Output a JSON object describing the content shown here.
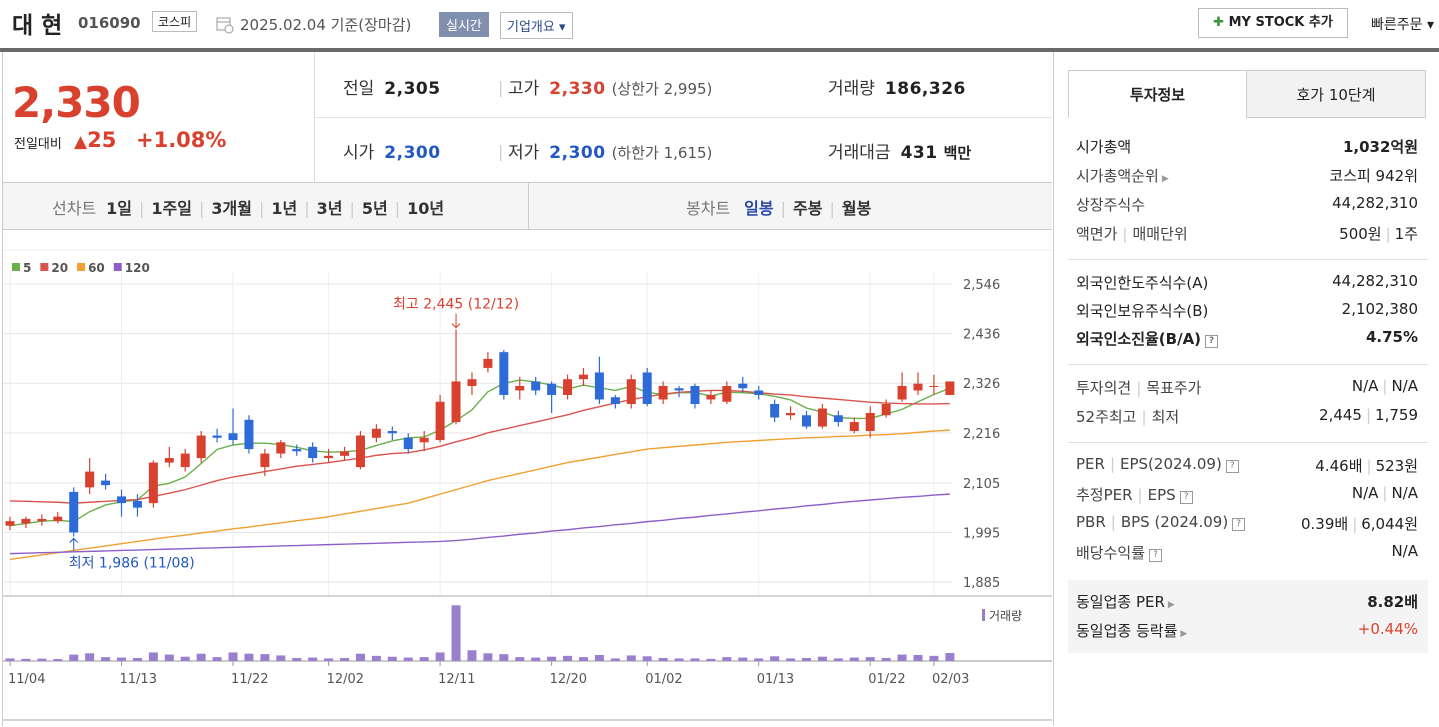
{
  "header": {
    "name": "대 현",
    "code": "016090",
    "market": "코스피",
    "date": "2025.02.04",
    "basis": "기준(장마감)",
    "realtime": "실시간",
    "company": "기업개요",
    "mystock": "MY STOCK 추가",
    "quick": "빠른주문"
  },
  "quote": {
    "price": "2,330",
    "change_label": "전일대비",
    "change": "25",
    "change_pct": "+1.08%",
    "rows": [
      [
        {
          "label": "전일",
          "value": "2,305",
          "color": "#222222"
        },
        {
          "label": "고가",
          "value": "2,330",
          "sub": "(상한가 2,995)",
          "color": "#d9412f"
        },
        {
          "label": "거래량",
          "value": "186,326",
          "color": "#222222"
        }
      ],
      [
        {
          "label": "시가",
          "value": "2,300",
          "color": "#2358c4"
        },
        {
          "label": "저가",
          "value": "2,300",
          "sub": "(하한가 1,615)",
          "color": "#2358c4"
        },
        {
          "label": "거래대금",
          "value": "431",
          "sub": "백만",
          "color": "#222222"
        }
      ]
    ]
  },
  "periods": {
    "line_label": "선차트",
    "line": [
      "1일",
      "1주일",
      "3개월",
      "1년",
      "3년",
      "5년",
      "10년"
    ],
    "candle_label": "봉차트",
    "candle": [
      "일봉",
      "주봉",
      "월봉"
    ]
  },
  "chart_data": {
    "type": "candlestick",
    "up_color": "#d9412f",
    "down_color": "#2f6bd6",
    "volume_color": "#9b7fcf",
    "categories": [
      "11/04",
      null,
      null,
      null,
      null,
      null,
      null,
      "11/13",
      null,
      null,
      null,
      null,
      null,
      null,
      "11/22",
      null,
      null,
      null,
      null,
      null,
      "12/02",
      null,
      null,
      null,
      null,
      null,
      null,
      "12/11",
      null,
      null,
      null,
      null,
      null,
      null,
      "12/20",
      null,
      null,
      null,
      null,
      null,
      "01/02",
      null,
      null,
      null,
      null,
      null,
      null,
      "01/13",
      null,
      null,
      null,
      null,
      null,
      null,
      "01/22",
      null,
      null,
      null,
      "02/03",
      null
    ],
    "ohlc": [
      [
        2010,
        2030,
        2000,
        2020
      ],
      [
        2015,
        2030,
        2005,
        2025
      ],
      [
        2020,
        2035,
        2010,
        2025
      ],
      [
        2020,
        2040,
        2015,
        2030
      ],
      [
        2085,
        2095,
        1986,
        1995
      ],
      [
        2095,
        2160,
        2080,
        2130
      ],
      [
        2110,
        2125,
        2090,
        2100
      ],
      [
        2075,
        2090,
        2030,
        2060
      ],
      [
        2065,
        2080,
        2030,
        2050
      ],
      [
        2060,
        2155,
        2050,
        2150
      ],
      [
        2150,
        2185,
        2140,
        2160
      ],
      [
        2140,
        2180,
        2130,
        2170
      ],
      [
        2160,
        2220,
        2150,
        2210
      ],
      [
        2210,
        2225,
        2195,
        2205
      ],
      [
        2215,
        2270,
        2190,
        2200
      ],
      [
        2245,
        2255,
        2170,
        2180
      ],
      [
        2140,
        2180,
        2120,
        2170
      ],
      [
        2170,
        2200,
        2160,
        2195
      ],
      [
        2180,
        2190,
        2165,
        2175
      ],
      [
        2185,
        2195,
        2150,
        2160
      ],
      [
        2160,
        2180,
        2150,
        2165
      ],
      [
        2165,
        2185,
        2155,
        2175
      ],
      [
        2140,
        2220,
        2135,
        2210
      ],
      [
        2205,
        2235,
        2195,
        2225
      ],
      [
        2220,
        2230,
        2200,
        2215
      ],
      [
        2205,
        2215,
        2170,
        2180
      ],
      [
        2195,
        2220,
        2175,
        2205
      ],
      [
        2200,
        2300,
        2195,
        2285
      ],
      [
        2240,
        2445,
        2235,
        2330
      ],
      [
        2320,
        2350,
        2300,
        2335
      ],
      [
        2360,
        2395,
        2350,
        2380
      ],
      [
        2395,
        2400,
        2290,
        2300
      ],
      [
        2310,
        2340,
        2290,
        2320
      ],
      [
        2330,
        2340,
        2300,
        2310
      ],
      [
        2325,
        2330,
        2260,
        2300
      ],
      [
        2300,
        2345,
        2290,
        2335
      ],
      [
        2335,
        2360,
        2320,
        2345
      ],
      [
        2350,
        2385,
        2280,
        2290
      ],
      [
        2295,
        2300,
        2270,
        2280
      ],
      [
        2280,
        2345,
        2270,
        2335
      ],
      [
        2350,
        2360,
        2275,
        2280
      ],
      [
        2290,
        2330,
        2280,
        2320
      ],
      [
        2315,
        2320,
        2295,
        2310
      ],
      [
        2320,
        2325,
        2270,
        2280
      ],
      [
        2290,
        2310,
        2280,
        2300
      ],
      [
        2285,
        2330,
        2280,
        2320
      ],
      [
        2325,
        2340,
        2305,
        2315
      ],
      [
        2310,
        2320,
        2290,
        2300
      ],
      [
        2280,
        2290,
        2240,
        2250
      ],
      [
        2255,
        2275,
        2245,
        2260
      ],
      [
        2255,
        2265,
        2225,
        2230
      ],
      [
        2230,
        2280,
        2225,
        2270
      ],
      [
        2255,
        2265,
        2230,
        2240
      ],
      [
        2220,
        2250,
        2215,
        2240
      ],
      [
        2220,
        2275,
        2205,
        2260
      ],
      [
        2255,
        2290,
        2250,
        2280
      ],
      [
        2290,
        2350,
        2285,
        2320
      ],
      [
        2310,
        2350,
        2300,
        2325
      ],
      [
        2320,
        2345,
        2300,
        2320
      ],
      [
        2300,
        2330,
        2300,
        2330
      ]
    ],
    "series": [
      {
        "name": "5",
        "color": "#6ab04c",
        "values": [
          2010,
          2015,
          2020,
          2022,
          2019,
          2041,
          2056,
          2063,
          2067,
          2098,
          2104,
          2118,
          2148,
          2179,
          2189,
          2193,
          2193,
          2190,
          2184,
          2176,
          2173,
          2174,
          2177,
          2188,
          2198,
          2205,
          2207,
          2222,
          2243,
          2267,
          2307,
          2326,
          2333,
          2329,
          2322,
          2313,
          2322,
          2316,
          2310,
          2319,
          2306,
          2301,
          2305,
          2305,
          2298,
          2306,
          2305,
          2303,
          2297,
          2289,
          2271,
          2262,
          2250,
          2248,
          2248,
          2258,
          2268,
          2285,
          2301,
          2315
        ]
      },
      {
        "name": "20",
        "color": "#d9534f",
        "values": [
          2065,
          2064,
          2063,
          2062,
          2060,
          2062,
          2064,
          2066,
          2068,
          2075,
          2082,
          2090,
          2100,
          2110,
          2118,
          2124,
          2130,
          2136,
          2142,
          2146,
          2150,
          2155,
          2160,
          2166,
          2170,
          2172,
          2178,
          2186,
          2196,
          2205,
          2216,
          2224,
          2232,
          2240,
          2248,
          2256,
          2266,
          2274,
          2282,
          2290,
          2296,
          2302,
          2306,
          2308,
          2310,
          2310,
          2308,
          2305,
          2302,
          2300,
          2296,
          2293,
          2290,
          2287,
          2284,
          2282,
          2281,
          2280,
          2280,
          2281
        ]
      },
      {
        "name": "60",
        "color": "#f0a030",
        "values": [
          1935,
          1940,
          1945,
          1950,
          1955,
          1960,
          1965,
          1970,
          1975,
          1980,
          1985,
          1989,
          1994,
          1998,
          2003,
          2007,
          2012,
          2016,
          2021,
          2025,
          2030,
          2036,
          2042,
          2048,
          2054,
          2060,
          2070,
          2080,
          2090,
          2100,
          2110,
          2118,
          2126,
          2134,
          2142,
          2150,
          2156,
          2162,
          2168,
          2174,
          2180,
          2183,
          2186,
          2189,
          2192,
          2195,
          2197,
          2199,
          2201,
          2203,
          2205,
          2206,
          2208,
          2209,
          2211,
          2212,
          2214,
          2217,
          2220,
          2222
        ]
      },
      {
        "name": "120",
        "color": "#8e5fc9",
        "values": [
          1948,
          1949,
          1950,
          1951,
          1952,
          1953,
          1954,
          1955,
          1956,
          1957,
          1958,
          1959,
          1960,
          1961,
          1962,
          1963,
          1964,
          1965,
          1966,
          1967,
          1968,
          1969,
          1970,
          1971,
          1972,
          1973,
          1974,
          1975,
          1977,
          1980,
          1984,
          1987,
          1991,
          1994,
          1998,
          2001,
          2005,
          2008,
          2012,
          2015,
          2019,
          2022,
          2026,
          2029,
          2033,
          2036,
          2040,
          2043,
          2047,
          2050,
          2054,
          2057,
          2061,
          2064,
          2067,
          2070,
          2073,
          2075,
          2078,
          2080
        ]
      }
    ],
    "volume_name": "거래량",
    "volumes": [
      60000,
      50000,
      55000,
      45000,
      150000,
      180000,
      90000,
      80000,
      70000,
      200000,
      150000,
      100000,
      170000,
      90000,
      200000,
      170000,
      160000,
      130000,
      70000,
      80000,
      60000,
      70000,
      170000,
      120000,
      100000,
      80000,
      90000,
      200000,
      1300000,
      250000,
      180000,
      160000,
      90000,
      80000,
      100000,
      120000,
      90000,
      140000,
      60000,
      130000,
      110000,
      70000,
      60000,
      60000,
      50000,
      90000,
      80000,
      60000,
      110000,
      60000,
      70000,
      100000,
      60000,
      80000,
      90000,
      70000,
      150000,
      140000,
      120000,
      186326
    ],
    "volume_lim": [
      0,
      1400000
    ],
    "ylim": [
      1854,
      2595
    ],
    "yticks": [
      {
        "value": 1885,
        "label": "1,885"
      },
      {
        "value": 1995,
        "label": "1,995"
      },
      {
        "value": 2105,
        "label": "2,105"
      },
      {
        "value": 2216,
        "label": "2,216"
      },
      {
        "value": 2326,
        "label": "2,326"
      },
      {
        "value": 2436,
        "label": "2,436"
      },
      {
        "value": 2546,
        "label": "2,546"
      }
    ],
    "grid": true,
    "annotations": [
      {
        "text": "최고 2,445 (12/12)",
        "color": "#d9412f"
      },
      {
        "text": "최저 1,986 (11/08)",
        "color": "#2358c4"
      }
    ]
  },
  "tabs": [
    "투자정보",
    "호가 10단계"
  ],
  "info": [
    [
      {
        "label": [
          "시가총액"
        ],
        "value": [
          "1,032억원"
        ]
      },
      {
        "label": [
          "시가총액순위"
        ],
        "value": [
          "코스피 942위"
        ]
      },
      {
        "label": [
          "상장주식수"
        ],
        "value": [
          "44,282,310"
        ]
      },
      {
        "label": [
          "액면가",
          "매매단위"
        ],
        "value": [
          "500원",
          "1주"
        ]
      }
    ],
    [
      {
        "label": [
          "외국인한도주식수(A)"
        ],
        "value": [
          "44,282,310"
        ]
      },
      {
        "label": [
          "외국인보유주식수(B)"
        ],
        "value": [
          "2,102,380"
        ]
      },
      {
        "label": [
          "외국인소진율(B/A)"
        ],
        "value": [
          "4.75%"
        ]
      }
    ],
    [
      {
        "label": [
          "투자의견",
          "목표주가"
        ],
        "value": [
          "N/A",
          "N/A"
        ]
      },
      {
        "label": [
          "52주최고",
          "최저"
        ],
        "value": [
          "2,445",
          "1,759"
        ]
      }
    ],
    [
      {
        "label": [
          "PER",
          "EPS(2024.09)"
        ],
        "value": [
          "4.46배",
          "523원"
        ]
      },
      {
        "label": [
          "추정PER",
          "EPS"
        ],
        "value": [
          "N/A",
          "N/A"
        ]
      },
      {
        "label": [
          "PBR",
          "BPS (2024.09)"
        ],
        "value": [
          "0.39배",
          "6,044원"
        ]
      },
      {
        "label": [
          "배당수익률"
        ],
        "value": [
          "N/A"
        ]
      }
    ],
    [
      {
        "label": [
          "동일업종 PER"
        ],
        "value": [
          "8.82배"
        ]
      },
      {
        "label": [
          "동일업종 등락률"
        ],
        "value": [
          "+0.44%"
        ]
      }
    ]
  ]
}
